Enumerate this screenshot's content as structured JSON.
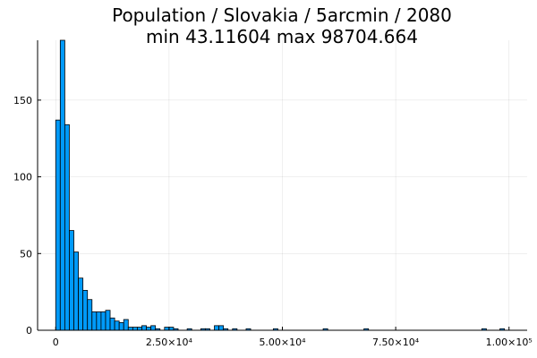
{
  "chart_data": {
    "type": "bar",
    "title_lines": [
      "Population / Slovakia / 5arcmin / 2080",
      "min 43.11604  max 98704.664"
    ],
    "xlabel": "",
    "ylabel": "",
    "bin_width": 1000,
    "x_range": [
      -4000,
      104000
    ],
    "ylim": [
      0,
      189
    ],
    "x_ticks": [
      0,
      25000,
      50000,
      75000,
      100000
    ],
    "x_tick_labels": [
      "0",
      "2.50×10⁴",
      "5.00×10⁴",
      "7.50×10⁴",
      "1.00×10⁵"
    ],
    "y_ticks": [
      0,
      50,
      100,
      150
    ],
    "y_tick_labels": [
      "0",
      "50",
      "100",
      "150"
    ],
    "grid": true,
    "legend": "none",
    "bar_color": "#009af9",
    "bins": [
      {
        "x0": 0,
        "count": 137
      },
      {
        "x0": 1000,
        "count": 189
      },
      {
        "x0": 2000,
        "count": 134
      },
      {
        "x0": 3000,
        "count": 65
      },
      {
        "x0": 4000,
        "count": 51
      },
      {
        "x0": 5000,
        "count": 34
      },
      {
        "x0": 6000,
        "count": 26
      },
      {
        "x0": 7000,
        "count": 20
      },
      {
        "x0": 8000,
        "count": 12
      },
      {
        "x0": 9000,
        "count": 12
      },
      {
        "x0": 10000,
        "count": 12
      },
      {
        "x0": 11000,
        "count": 13
      },
      {
        "x0": 12000,
        "count": 8
      },
      {
        "x0": 13000,
        "count": 6
      },
      {
        "x0": 14000,
        "count": 5
      },
      {
        "x0": 15000,
        "count": 7
      },
      {
        "x0": 16000,
        "count": 2
      },
      {
        "x0": 17000,
        "count": 2
      },
      {
        "x0": 18000,
        "count": 2
      },
      {
        "x0": 19000,
        "count": 3
      },
      {
        "x0": 20000,
        "count": 2
      },
      {
        "x0": 21000,
        "count": 3
      },
      {
        "x0": 22000,
        "count": 1
      },
      {
        "x0": 24000,
        "count": 2
      },
      {
        "x0": 25000,
        "count": 2
      },
      {
        "x0": 26000,
        "count": 1
      },
      {
        "x0": 29000,
        "count": 1
      },
      {
        "x0": 32000,
        "count": 1
      },
      {
        "x0": 33000,
        "count": 1
      },
      {
        "x0": 35000,
        "count": 3
      },
      {
        "x0": 36000,
        "count": 3
      },
      {
        "x0": 37000,
        "count": 1
      },
      {
        "x0": 39000,
        "count": 1
      },
      {
        "x0": 42000,
        "count": 1
      },
      {
        "x0": 48000,
        "count": 1
      },
      {
        "x0": 59000,
        "count": 1
      },
      {
        "x0": 68000,
        "count": 1
      },
      {
        "x0": 94000,
        "count": 1
      },
      {
        "x0": 98000,
        "count": 1
      }
    ]
  }
}
